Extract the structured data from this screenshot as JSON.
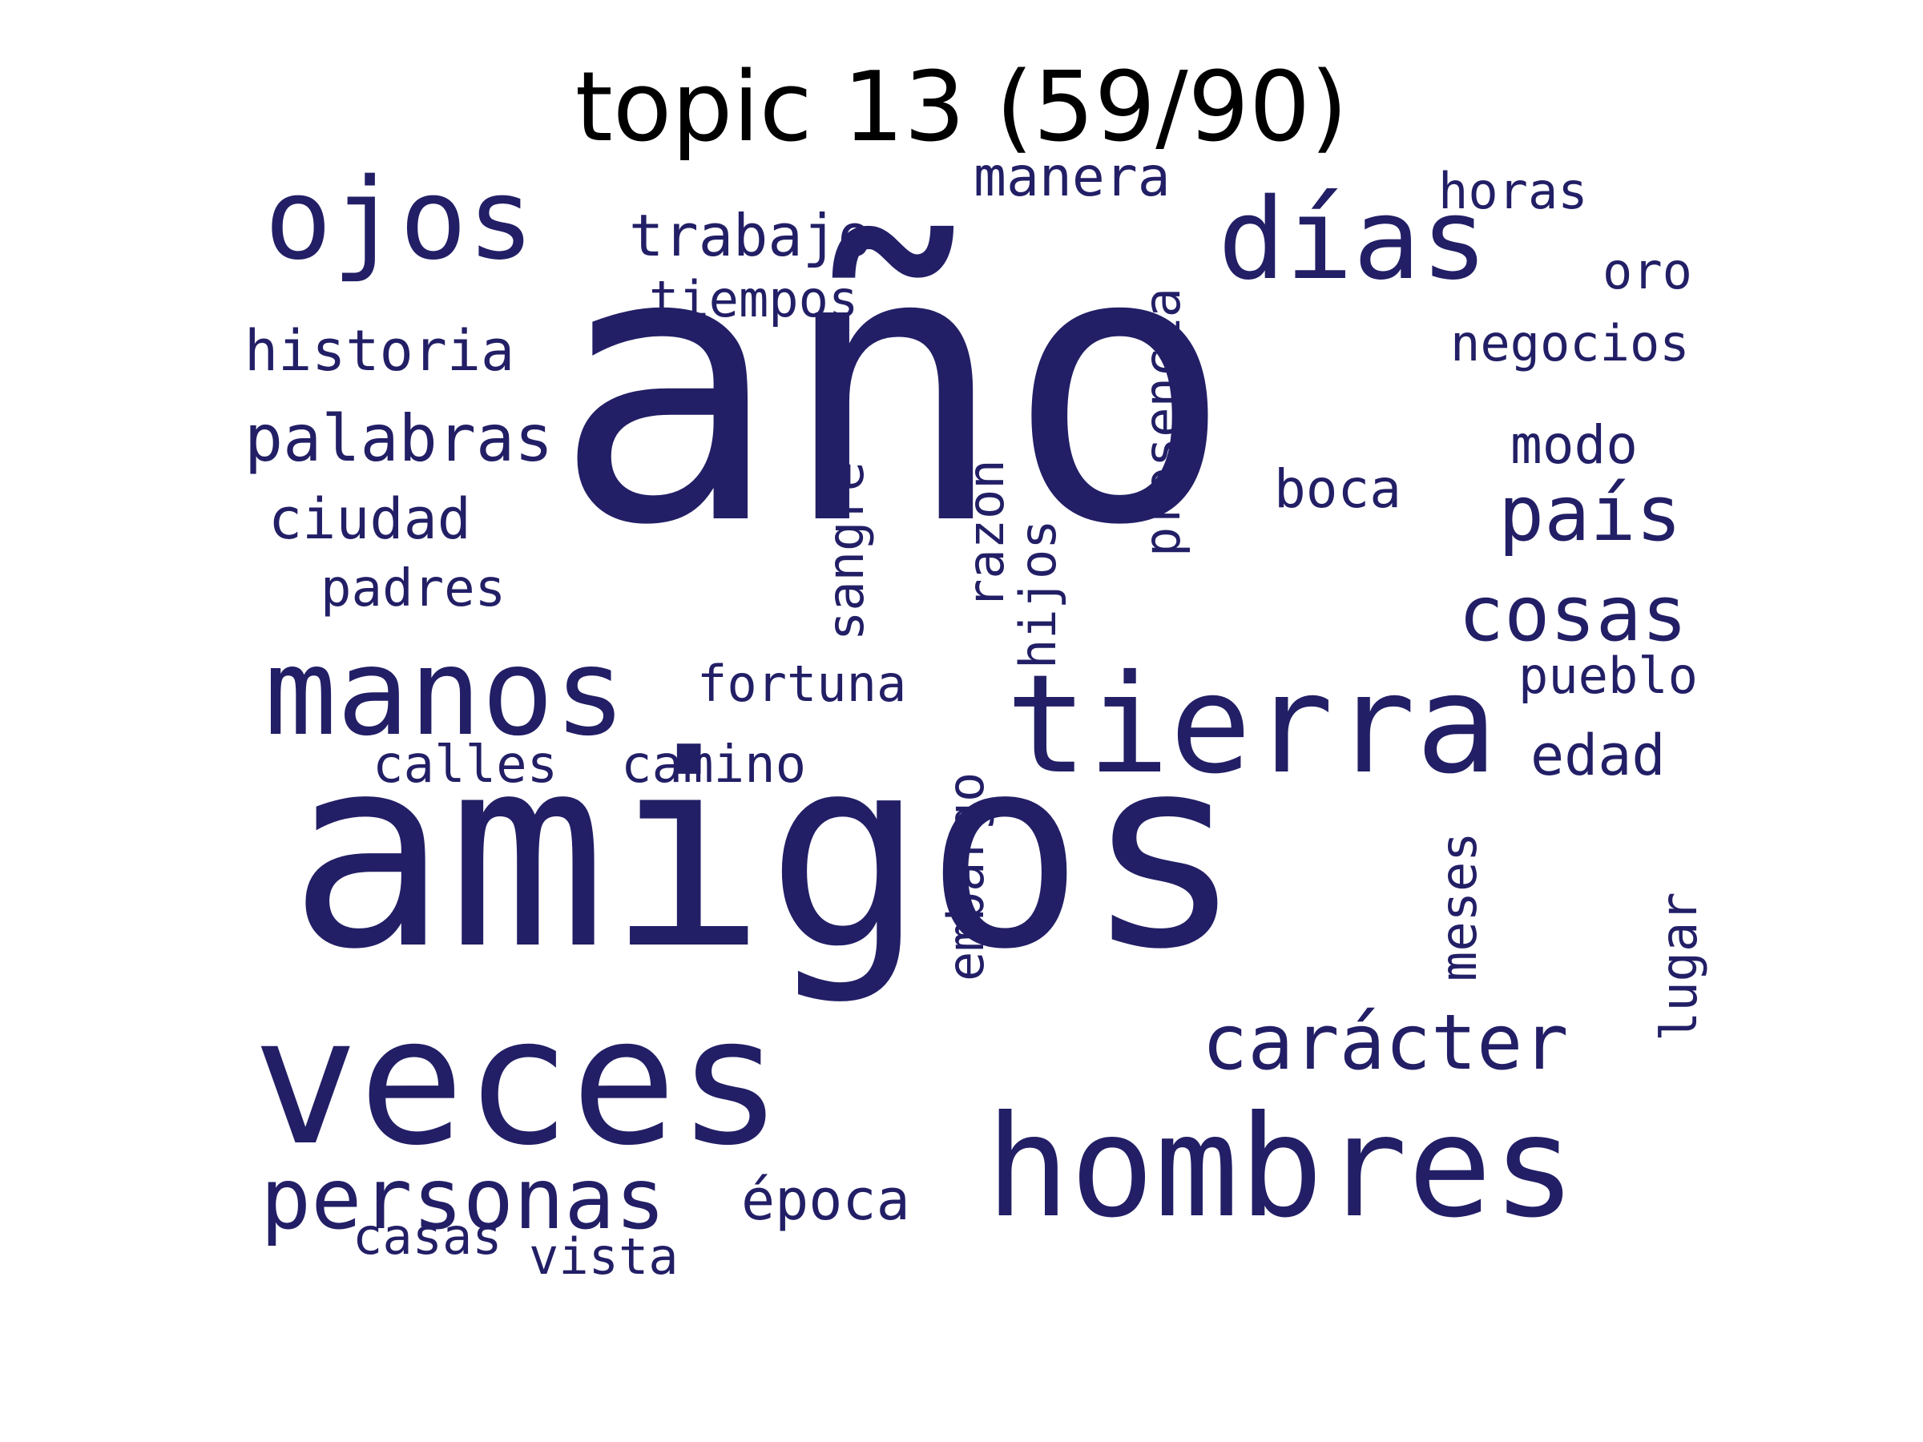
{
  "title": "topic 13 (59/90)",
  "word_color": "#221F66",
  "words": [
    {
      "text": "año",
      "orientation": "horizontal"
    },
    {
      "text": "amigos",
      "orientation": "horizontal"
    },
    {
      "text": "veces",
      "orientation": "horizontal"
    },
    {
      "text": "hombres",
      "orientation": "horizontal"
    },
    {
      "text": "días",
      "orientation": "horizontal"
    },
    {
      "text": "tierra",
      "orientation": "horizontal"
    },
    {
      "text": "ojos",
      "orientation": "horizontal"
    },
    {
      "text": "manos",
      "orientation": "horizontal"
    },
    {
      "text": "personas",
      "orientation": "horizontal"
    },
    {
      "text": "carácter",
      "orientation": "horizontal"
    },
    {
      "text": "país",
      "orientation": "horizontal"
    },
    {
      "text": "cosas",
      "orientation": "horizontal"
    },
    {
      "text": "palabras",
      "orientation": "horizontal"
    },
    {
      "text": "trabajo",
      "orientation": "horizontal"
    },
    {
      "text": "historia",
      "orientation": "horizontal"
    },
    {
      "text": "ciudad",
      "orientation": "horizontal"
    },
    {
      "text": "manera",
      "orientation": "horizontal"
    },
    {
      "text": "negocios",
      "orientation": "horizontal"
    },
    {
      "text": "tiempos",
      "orientation": "horizontal"
    },
    {
      "text": "padres",
      "orientation": "horizontal"
    },
    {
      "text": "fortuna",
      "orientation": "horizontal"
    },
    {
      "text": "pueblo",
      "orientation": "horizontal"
    },
    {
      "text": "calles",
      "orientation": "horizontal"
    },
    {
      "text": "camino",
      "orientation": "horizontal"
    },
    {
      "text": "edad",
      "orientation": "horizontal"
    },
    {
      "text": "época",
      "orientation": "horizontal"
    },
    {
      "text": "horas",
      "orientation": "horizontal"
    },
    {
      "text": "modo",
      "orientation": "horizontal"
    },
    {
      "text": "boca",
      "orientation": "horizontal"
    },
    {
      "text": "oro",
      "orientation": "horizontal"
    },
    {
      "text": "casas",
      "orientation": "horizontal"
    },
    {
      "text": "vista",
      "orientation": "horizontal"
    },
    {
      "text": "presencia",
      "orientation": "vertical"
    },
    {
      "text": "sangre",
      "orientation": "vertical"
    },
    {
      "text": "razón",
      "orientation": "vertical"
    },
    {
      "text": "hijos",
      "orientation": "vertical"
    },
    {
      "text": "embargo",
      "orientation": "vertical"
    },
    {
      "text": "meses",
      "orientation": "vertical"
    },
    {
      "text": "lugar",
      "orientation": "vertical"
    }
  ]
}
